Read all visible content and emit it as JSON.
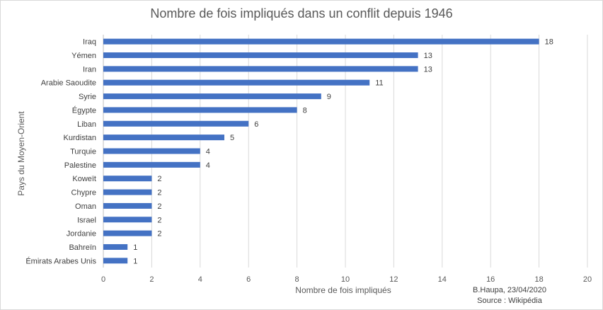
{
  "chart_data": {
    "type": "bar",
    "orientation": "horizontal",
    "title": "Nombre de fois impliqués dans un conflit depuis 1946",
    "xlabel": "Nombre de fois impliqués",
    "ylabel": "Pays du Moyen-Orient",
    "xlim": [
      0,
      20
    ],
    "xticks": [
      0,
      2,
      4,
      6,
      8,
      10,
      12,
      14,
      16,
      18,
      20
    ],
    "grid": "vertical",
    "bar_color": "#4472C4",
    "categories": [
      "Iraq",
      "Yémen",
      "Iran",
      "Arabie Saoudite",
      "Syrie",
      "Égypte",
      "Liban",
      "Kurdistan",
      "Turquie",
      "Palestine",
      "Koweït",
      "Chypre",
      "Oman",
      "Israel",
      "Jordanie",
      "Bahreïn",
      "Émirats Arabes Unis"
    ],
    "values": [
      18,
      13,
      13,
      11,
      9,
      8,
      6,
      5,
      4,
      4,
      2,
      2,
      2,
      2,
      2,
      1,
      1
    ]
  },
  "credit": {
    "author": "B.Haupa, 23/04/2020",
    "source": "Source : Wikipédia"
  }
}
